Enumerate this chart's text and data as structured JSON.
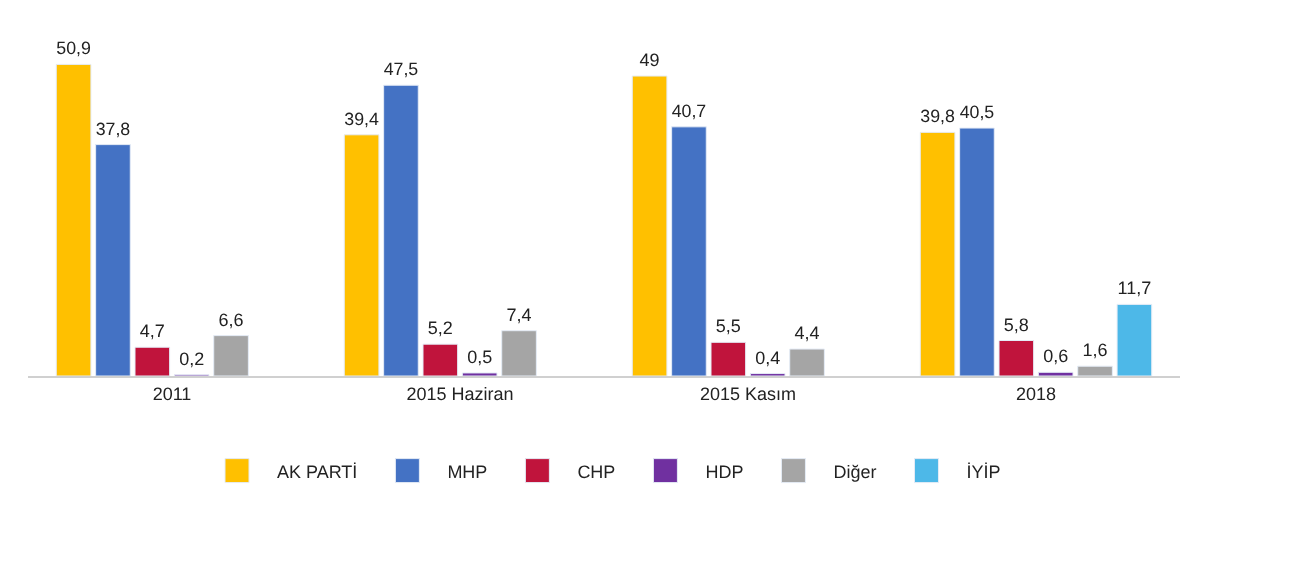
{
  "chart_data": {
    "type": "bar",
    "categories": [
      "2011",
      "2015 Haziran",
      "2015 Kasım",
      "2018"
    ],
    "series": [
      {
        "name": "AK PARTİ",
        "color": "#ffc000",
        "values": [
          50.9,
          39.4,
          49,
          39.8
        ],
        "value_labels": [
          "50,9",
          "39,4",
          "49",
          "39,8"
        ]
      },
      {
        "name": "MHP",
        "color": "#4472c4",
        "values": [
          37.8,
          47.5,
          40.7,
          40.5
        ],
        "value_labels": [
          "37,8",
          "47,5",
          "40,7",
          "40,5"
        ]
      },
      {
        "name": "CHP",
        "color": "#c0143c",
        "values": [
          4.7,
          5.2,
          5.5,
          5.8
        ],
        "value_labels": [
          "4,7",
          "5,2",
          "5,5",
          "5,8"
        ]
      },
      {
        "name": "HDP",
        "color": "#7030a0",
        "values": [
          0.2,
          0.5,
          0.4,
          0.6
        ],
        "value_labels": [
          "0,2",
          "0,5",
          "0,4",
          "0,6"
        ]
      },
      {
        "name": "Diğer",
        "color": "#a5a5a5",
        "values": [
          6.6,
          7.4,
          4.4,
          1.6
        ],
        "value_labels": [
          "6,6",
          "7,4",
          "4,4",
          "1,6"
        ]
      },
      {
        "name": "İYİP",
        "color": "#4db8e8",
        "values": [
          null,
          null,
          null,
          11.7
        ],
        "value_labels": [
          null,
          null,
          null,
          "11,7"
        ]
      }
    ],
    "legend": "bottom"
  }
}
